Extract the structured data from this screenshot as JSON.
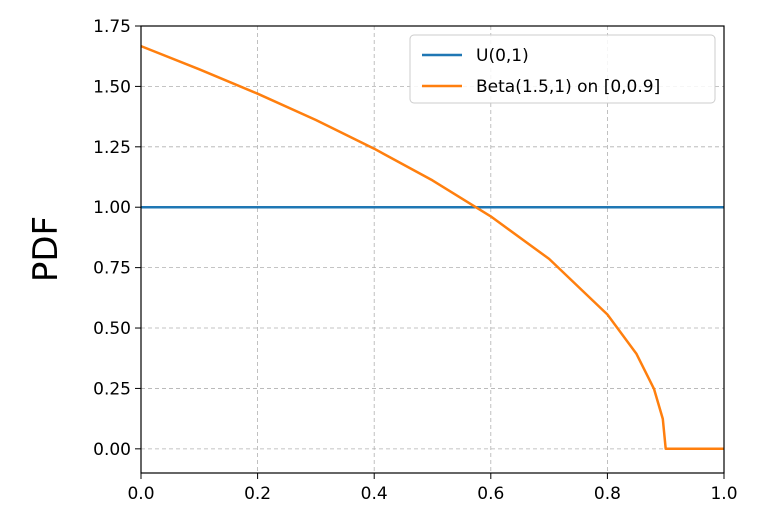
{
  "chart_data": {
    "type": "line",
    "title": "",
    "xlabel": "",
    "ylabel": "PDF",
    "xlim": [
      0.0,
      1.0
    ],
    "ylim": [
      -0.1,
      1.75
    ],
    "xticks": [
      "0.0",
      "0.2",
      "0.4",
      "0.6",
      "0.8",
      "1.0"
    ],
    "yticks": [
      "0.00",
      "0.25",
      "0.50",
      "0.75",
      "1.00",
      "1.25",
      "1.50",
      "1.75"
    ],
    "grid": true,
    "legend_position": "top-right",
    "series": [
      {
        "name": "U(0,1)",
        "color": "#1f77b4",
        "x": [
          0.0,
          1.0
        ],
        "y": [
          1.0,
          1.0
        ]
      },
      {
        "name": "Beta(1.5,1) on [0,0.9]",
        "color": "#ff7f0e",
        "x": [
          0.0,
          0.1,
          0.2,
          0.3,
          0.4,
          0.5,
          0.6,
          0.7,
          0.8,
          0.85,
          0.88,
          0.895,
          0.9,
          0.901,
          1.0
        ],
        "y": [
          1.667,
          1.571,
          1.47,
          1.361,
          1.242,
          1.111,
          0.962,
          0.786,
          0.556,
          0.393,
          0.248,
          0.124,
          0.0,
          0.0,
          0.0
        ]
      }
    ]
  }
}
